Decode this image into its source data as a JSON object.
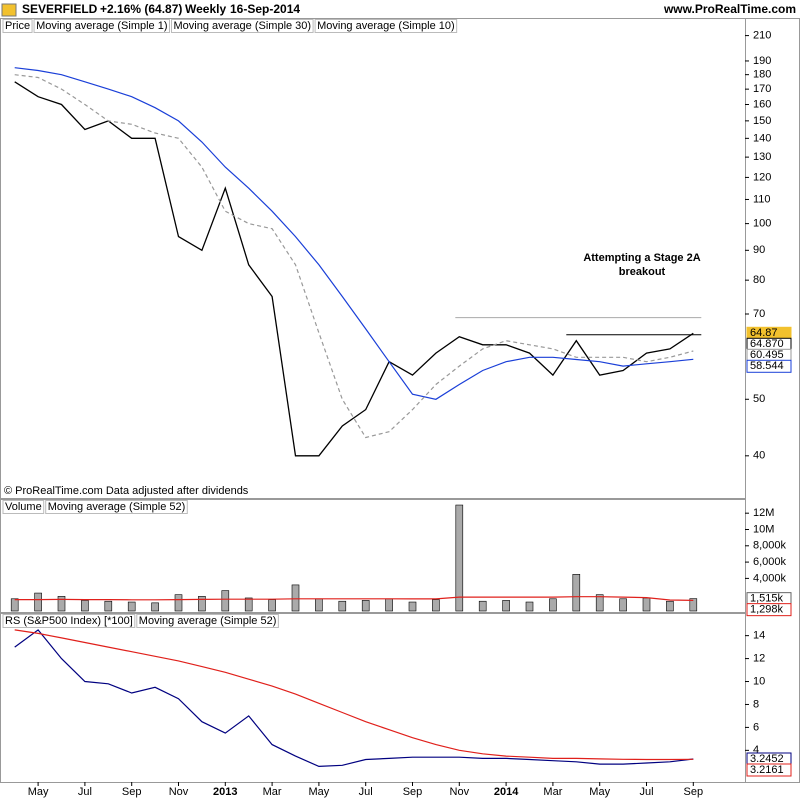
{
  "header": {
    "symbol": "SEVERFIELD",
    "change": "+2.16% (64.87)",
    "period": "Weekly",
    "date": "16-Sep-2014",
    "site": "www.ProRealTime.com"
  },
  "footer": "© ProRealTime.com  Data adjusted after dividends",
  "chart_data": [
    {
      "type": "line",
      "panel_label": "Price",
      "log_scale": true,
      "categories": [
        null,
        "May",
        null,
        "Jul",
        null,
        "Sep",
        null,
        "Nov",
        null,
        "2013",
        null,
        "Mar",
        null,
        "May",
        null,
        "Jul",
        null,
        "Sep",
        null,
        "Nov",
        null,
        "2014",
        null,
        "Mar",
        null,
        "May",
        null,
        "Jul",
        null,
        "Sep"
      ],
      "series": [
        {
          "name": "Moving average (Simple 1)",
          "color": "#000000",
          "values": [
            175,
            165,
            160,
            145,
            150,
            140,
            140,
            95,
            90,
            115,
            85,
            75,
            40,
            40,
            45,
            48,
            58,
            55,
            60,
            64,
            62,
            62,
            60,
            55,
            63,
            55,
            56,
            60,
            61,
            64.87
          ]
        },
        {
          "name": "Moving average (Simple 30)",
          "color": "#1a3fd8",
          "values": [
            185,
            183,
            180,
            175,
            170,
            165,
            158,
            150,
            138,
            125,
            115,
            105,
            95,
            85,
            75,
            66,
            58,
            51,
            50,
            53,
            56,
            58,
            59,
            59,
            58.5,
            58,
            57,
            57.5,
            58,
            58.544
          ]
        },
        {
          "name": "Moving average (Simple 10)",
          "color": "#999999",
          "dashed": true,
          "values": [
            180,
            178,
            170,
            160,
            150,
            148,
            143,
            140,
            125,
            105,
            100,
            98,
            85,
            65,
            50,
            43,
            44,
            48,
            53,
            57,
            61,
            63,
            62,
            61,
            59,
            59,
            59,
            58,
            59,
            60.495
          ]
        }
      ],
      "ylim": [
        34,
        213
      ],
      "yticks": [
        40,
        50,
        70,
        80,
        90,
        100,
        110,
        120,
        130,
        140,
        150,
        160,
        170,
        180,
        190,
        210
      ],
      "last_values": [
        {
          "value": 64.87,
          "color": "#f2c12e"
        },
        {
          "value": 64.87,
          "label": "64.870",
          "color": "#000000"
        },
        {
          "value": 60.495,
          "color": "#999999"
        },
        {
          "value": 58.544,
          "color": "#1a3fd8"
        }
      ],
      "hlines": [
        {
          "value": 69,
          "color": "#aaaaaa"
        },
        {
          "value": 64.5,
          "color": "#000000"
        }
      ],
      "annotation": [
        "Attempting a Stage 2A",
        "breakout"
      ]
    },
    {
      "type": "bar",
      "series": [
        {
          "name": "Volume",
          "color": "#999999",
          "values": [
            1500000,
            2200000,
            1800000,
            1300000,
            1200000,
            1100000,
            1000000,
            2000000,
            1800000,
            2500000,
            1600000,
            1400000,
            3200000,
            1500000,
            1200000,
            1300000,
            1500000,
            1100000,
            1400000,
            13000000,
            1200000,
            1300000,
            1100000,
            1500000,
            4500000,
            2000000,
            1500000,
            1600000,
            1200000,
            1515000
          ]
        },
        {
          "name": "Moving average (Simple 52)",
          "color": "#e0201b",
          "values": [
            1400000,
            1400000,
            1420000,
            1400000,
            1400000,
            1380000,
            1380000,
            1400000,
            1420000,
            1450000,
            1450000,
            1450000,
            1500000,
            1500000,
            1500000,
            1500000,
            1500000,
            1480000,
            1480000,
            1700000,
            1700000,
            1700000,
            1700000,
            1700000,
            1750000,
            1750000,
            1700000,
            1650000,
            1350000,
            1298000
          ]
        }
      ],
      "ylim": [
        0,
        13250000
      ],
      "yticks": [
        {
          "value": 4000000,
          "label": "4,000k"
        },
        {
          "value": 6000000,
          "label": "6,000k"
        },
        {
          "value": 8000000,
          "label": "8,000k"
        },
        {
          "value": 10000000,
          "label": "10M"
        },
        {
          "value": 12000000,
          "label": "12M"
        }
      ],
      "last_values": [
        {
          "value": 1515000,
          "label": "1,515k",
          "color": "#666666"
        },
        {
          "value": 1298000,
          "label": "1,298k",
          "color": "#e0201b"
        }
      ]
    },
    {
      "type": "line",
      "series": [
        {
          "name": "RS (S&P500 Index) [*100]",
          "color": "#000080",
          "values": [
            13,
            14.5,
            12,
            10,
            9.8,
            9,
            9.5,
            8.5,
            6.5,
            5.5,
            7,
            4.5,
            3.5,
            2.6,
            2.7,
            3.2,
            3.3,
            3.4,
            3.4,
            3.4,
            3.3,
            3.3,
            3.2,
            3.1,
            3.0,
            2.8,
            2.8,
            2.9,
            3.0,
            3.2452
          ]
        },
        {
          "name": "Moving average (Simple 52)",
          "color": "#e0201b",
          "values": [
            14.5,
            14.2,
            13.8,
            13.4,
            13,
            12.6,
            12.2,
            11.8,
            11.3,
            10.8,
            10.2,
            9.6,
            8.9,
            8.1,
            7.3,
            6.5,
            5.8,
            5.1,
            4.5,
            4.0,
            3.7,
            3.5,
            3.4,
            3.3,
            3.3,
            3.25,
            3.22,
            3.2,
            3.2,
            3.2161
          ]
        }
      ],
      "ylim": [
        1.24,
        15.8
      ],
      "yticks": [
        4,
        6,
        8,
        10,
        12,
        14
      ],
      "last_values": [
        {
          "value": 3.2452,
          "color": "#000080"
        },
        {
          "value": 3.2161,
          "color": "#e0201b"
        }
      ]
    }
  ]
}
